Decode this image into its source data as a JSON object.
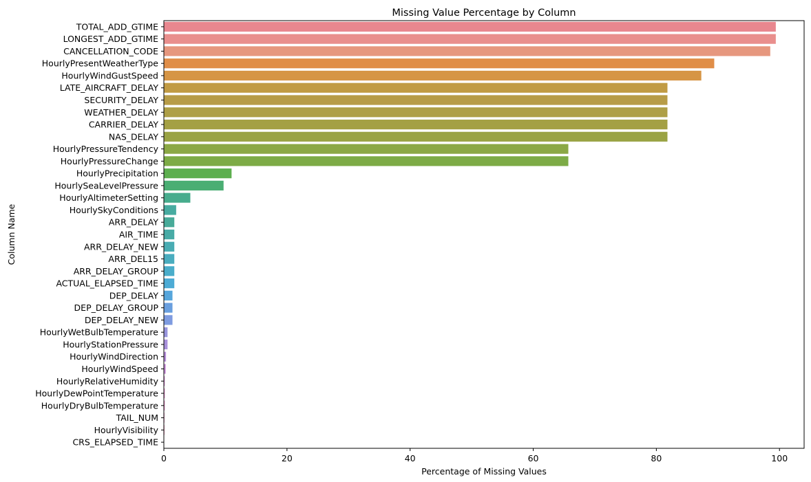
{
  "chart_data": {
    "type": "bar",
    "orientation": "horizontal",
    "title": "Missing Value Percentage by Column",
    "xlabel": "Percentage of Missing Values",
    "ylabel": "Column Name",
    "xlim": [
      0,
      104
    ],
    "xticks": [
      0,
      20,
      40,
      60,
      80,
      100
    ],
    "grid": false,
    "categories": [
      "TOTAL_ADD_GTIME",
      "LONGEST_ADD_GTIME",
      "CANCELLATION_CODE",
      "HourlyPresentWeatherType",
      "HourlyWindGustSpeed",
      "LATE_AIRCRAFT_DELAY",
      "SECURITY_DELAY",
      "WEATHER_DELAY",
      "CARRIER_DELAY",
      "NAS_DELAY",
      "HourlyPressureTendency",
      "HourlyPressureChange",
      "HourlyPrecipitation",
      "HourlySeaLevelPressure",
      "HourlyAltimeterSetting",
      "HourlySkyConditions",
      "ARR_DELAY",
      "AIR_TIME",
      "ARR_DELAY_NEW",
      "ARR_DEL15",
      "ARR_DELAY_GROUP",
      "ACTUAL_ELAPSED_TIME",
      "DEP_DELAY",
      "DEP_DELAY_GROUP",
      "DEP_DELAY_NEW",
      "HourlyWetBulbTemperature",
      "HourlyStationPressure",
      "HourlyWindDirection",
      "HourlyWindSpeed",
      "HourlyRelativeHumidity",
      "HourlyDewPointTemperature",
      "HourlyDryBulbTemperature",
      "TAIL_NUM",
      "HourlyVisibility",
      "CRS_ELAPSED_TIME"
    ],
    "values": [
      99.4,
      99.4,
      98.5,
      89.4,
      87.3,
      81.8,
      81.8,
      81.8,
      81.8,
      81.8,
      65.7,
      65.7,
      11.0,
      9.7,
      4.3,
      2.0,
      1.7,
      1.7,
      1.7,
      1.7,
      1.7,
      1.7,
      1.4,
      1.4,
      1.4,
      0.6,
      0.6,
      0.35,
      0.3,
      0.15,
      0.15,
      0.15,
      0.1,
      0.1,
      0.02
    ],
    "colors": [
      "#e8878f",
      "#e98f8d",
      "#e6977e",
      "#e08e48",
      "#d69545",
      "#c19b44",
      "#b79c47",
      "#ae9f46",
      "#a4a044",
      "#9aa344",
      "#8ba845",
      "#7dab46",
      "#5daf4f",
      "#4aae73",
      "#47ac8d",
      "#47aba0",
      "#48ab99",
      "#48aba6",
      "#49acb3",
      "#4aadbf",
      "#4aadca",
      "#4dabd5",
      "#56a6dc",
      "#699fdf",
      "#7e9be0",
      "#9895dd",
      "#a991dc",
      "#b58cd9",
      "#c58ad6",
      "#d286d1",
      "#dc84c4",
      "#e286c0",
      "#e488b8",
      "#e68bb1",
      "#e78ca8"
    ]
  }
}
